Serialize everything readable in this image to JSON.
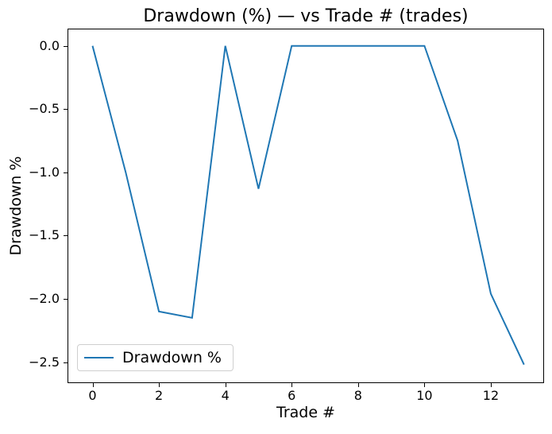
{
  "chart_data": {
    "type": "line",
    "title": "Drawdown (%) — vs Trade # (trades)",
    "xlabel": "Trade #",
    "ylabel": "Drawdown %",
    "legend": {
      "entries": [
        "Drawdown %"
      ],
      "position": "lower left"
    },
    "line_color": "#1f77b4",
    "background_color": "#ffffff",
    "grid": false,
    "x": [
      0,
      1,
      2,
      3,
      4,
      5,
      6,
      7,
      8,
      9,
      10,
      11,
      12,
      13
    ],
    "y": [
      0.0,
      -1.0,
      -2.1,
      -2.15,
      0.0,
      -1.13,
      0.0,
      0.0,
      0.0,
      0.0,
      0.0,
      -0.75,
      -1.96,
      -2.52
    ],
    "xlim": [
      -0.73,
      13.58
    ],
    "ylim": [
      -2.66,
      0.13
    ],
    "xticks": [
      {
        "value": 0,
        "label": "0"
      },
      {
        "value": 2,
        "label": "2"
      },
      {
        "value": 4,
        "label": "4"
      },
      {
        "value": 6,
        "label": "6"
      },
      {
        "value": 8,
        "label": "8"
      },
      {
        "value": 10,
        "label": "10"
      },
      {
        "value": 12,
        "label": "12"
      }
    ],
    "yticks": [
      {
        "value": 0.0,
        "label": "0.0"
      },
      {
        "value": -0.5,
        "label": "−0.5"
      },
      {
        "value": -1.0,
        "label": "−1.0"
      },
      {
        "value": -1.5,
        "label": "−1.5"
      },
      {
        "value": -2.0,
        "label": "−2.0"
      },
      {
        "value": -2.5,
        "label": "−2.5"
      }
    ]
  }
}
